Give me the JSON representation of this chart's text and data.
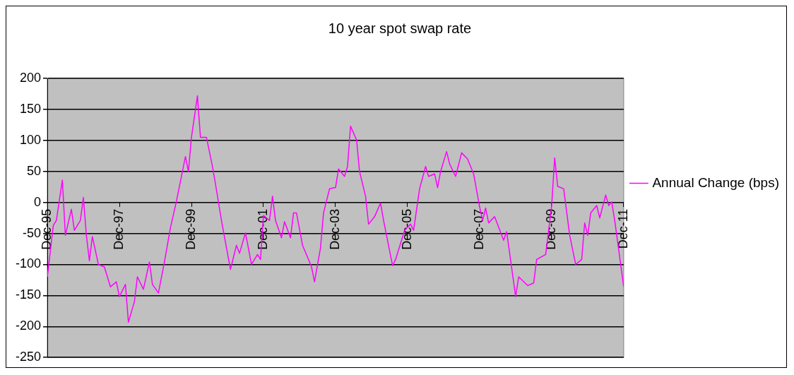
{
  "chart_data": {
    "type": "line",
    "title": "10 year spot swap rate",
    "x": [
      "1995-12",
      "1996-02",
      "1996-03",
      "1996-05",
      "1996-06",
      "1996-08",
      "1996-09",
      "1996-11",
      "1996-12",
      "1997-01",
      "1997-02",
      "1997-03",
      "1997-05",
      "1997-07",
      "1997-09",
      "1997-11",
      "1997-12",
      "1998-02",
      "1998-03",
      "1998-05",
      "1998-06",
      "1998-08",
      "1998-10",
      "1998-11",
      "1999-01",
      "1999-03",
      "1999-05",
      "1999-07",
      "1999-10",
      "1999-11",
      "1999-12",
      "2000-02",
      "2000-03",
      "2000-05",
      "2000-07",
      "2000-08",
      "2000-10",
      "2001-01",
      "2001-03",
      "2001-04",
      "2001-06",
      "2001-08",
      "2001-10",
      "2001-11",
      "2001-12",
      "2002-02",
      "2002-03",
      "2002-04",
      "2002-06",
      "2002-07",
      "2002-09",
      "2002-10",
      "2002-11",
      "2003-01",
      "2003-03",
      "2003-04",
      "2003-05",
      "2003-07",
      "2003-08",
      "2003-10",
      "2003-12",
      "2004-01",
      "2004-03",
      "2004-04",
      "2004-05",
      "2004-07",
      "2004-08",
      "2004-10",
      "2004-11",
      "2005-01",
      "2005-03",
      "2005-04",
      "2005-07",
      "2005-08",
      "2005-11",
      "2006-01",
      "2006-02",
      "2006-04",
      "2006-06",
      "2006-07",
      "2006-09",
      "2006-10",
      "2006-11",
      "2007-01",
      "2007-02",
      "2007-04",
      "2007-06",
      "2007-08",
      "2007-10",
      "2007-12",
      "2008-01",
      "2008-02",
      "2008-03",
      "2008-05",
      "2008-08",
      "2008-09",
      "2008-12",
      "2009-01",
      "2009-04",
      "2009-06",
      "2009-07",
      "2009-10",
      "2009-12",
      "2010-01",
      "2010-02",
      "2010-04",
      "2010-06",
      "2010-08",
      "2010-10",
      "2010-11",
      "2010-12",
      "2011-01",
      "2011-03",
      "2011-04",
      "2011-06",
      "2011-07",
      "2011-08",
      "2011-09",
      "2011-12"
    ],
    "series": [
      {
        "name": "Annual Change (bps)",
        "color": "#ff00ff",
        "values": [
          -120,
          -37,
          -29,
          36,
          -53,
          -11,
          -45,
          -29,
          8,
          -53,
          -94,
          -55,
          -100,
          -104,
          -136,
          -128,
          -152,
          -132,
          -193,
          -160,
          -120,
          -140,
          -96,
          -132,
          -146,
          -96,
          -41,
          2,
          74,
          50,
          105,
          172,
          105,
          105,
          58,
          30,
          -29,
          -108,
          -69,
          -82,
          -49,
          -100,
          -84,
          -92,
          -21,
          -29,
          10,
          -29,
          -57,
          -31,
          -57,
          -17,
          -17,
          -69,
          -92,
          -104,
          -128,
          -73,
          -17,
          22,
          24,
          54,
          42,
          58,
          123,
          101,
          50,
          10,
          -35,
          -23,
          -1,
          -29,
          -102,
          -92,
          -45,
          -35,
          -45,
          22,
          58,
          42,
          46,
          24,
          50,
          82,
          62,
          42,
          80,
          70,
          46,
          -7,
          -29,
          -9,
          -33,
          -23,
          -61,
          -47,
          -152,
          -120,
          -134,
          -130,
          -92,
          -84,
          -5,
          72,
          26,
          22,
          -53,
          -100,
          -92,
          -33,
          -53,
          -17,
          -5,
          -25,
          12,
          -5,
          1,
          -29,
          -136
        ]
      }
    ],
    "xlim": [
      "1995-12",
      "2011-12"
    ],
    "xticks": [
      {
        "value": "1995-12",
        "label": "Dec-95"
      },
      {
        "value": "1997-12",
        "label": "Dec-97"
      },
      {
        "value": "1999-12",
        "label": "Dec-99"
      },
      {
        "value": "2001-12",
        "label": "Dec-01"
      },
      {
        "value": "2003-12",
        "label": "Dec-03"
      },
      {
        "value": "2005-12",
        "label": "Dec-05"
      },
      {
        "value": "2007-12",
        "label": "Dec-07"
      },
      {
        "value": "2009-12",
        "label": "Dec-09"
      },
      {
        "value": "2011-12",
        "label": "Dec-11"
      }
    ],
    "ylim": [
      -250,
      200
    ],
    "yticks": [
      -250,
      -200,
      -150,
      -100,
      -50,
      0,
      50,
      100,
      150,
      200
    ],
    "grid": "y",
    "legend": "right",
    "marker": "none",
    "line_style": "solid"
  }
}
